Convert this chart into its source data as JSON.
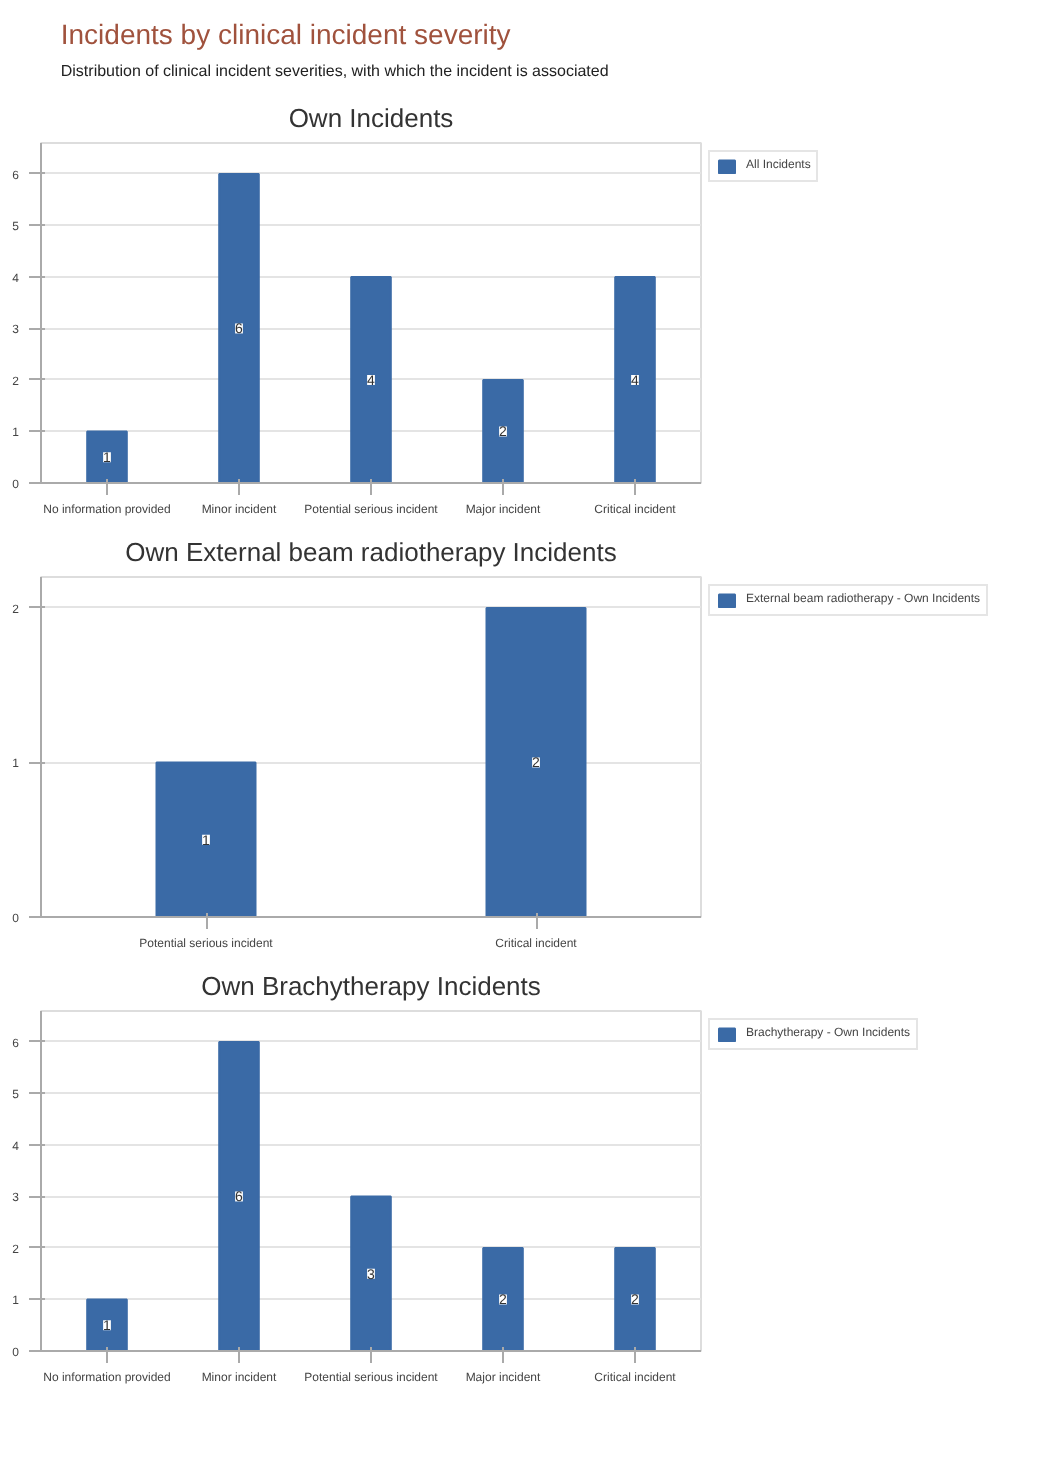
{
  "chart_data": [
    {
      "type": "bar",
      "title": "Own Incidents",
      "annotations": [
        "Incidents by clinical incident severity",
        "Distribution of clinical incident severities, with which the incident is associated"
      ],
      "categories": [
        "No information provided",
        "Minor incident",
        "Potential serious incident",
        "Major incident",
        "Critical incident"
      ],
      "series": [
        {
          "name": "All Incidents",
          "color": "#3a6aa6",
          "values": [
            1,
            6,
            4,
            2,
            4
          ]
        }
      ],
      "ylim": [
        0,
        6.6
      ],
      "yticks": [
        0,
        1,
        2,
        3,
        4,
        5,
        6
      ],
      "grid": "y",
      "legend": "right",
      "data_labels": true
    },
    {
      "type": "bar",
      "title": "Own External beam radiotherapy Incidents",
      "categories": [
        "Potential serious incident",
        "Critical incident"
      ],
      "series": [
        {
          "name": "External beam radiotherapy - Own Incidents",
          "color": "#3a6aa6",
          "values": [
            1,
            2
          ]
        }
      ],
      "ylim": [
        0,
        2.2
      ],
      "yticks": [
        0,
        1,
        2
      ],
      "grid": "y",
      "legend": "right",
      "data_labels": true
    },
    {
      "type": "bar",
      "title": "Own Brachytherapy Incidents",
      "categories": [
        "No information provided",
        "Minor incident",
        "Potential serious incident",
        "Major incident",
        "Critical incident"
      ],
      "series": [
        {
          "name": "Brachytherapy - Own Incidents",
          "color": "#3a6aa6",
          "values": [
            1,
            6,
            3,
            2,
            2
          ]
        }
      ],
      "ylim": [
        0,
        6.6
      ],
      "yticks": [
        0,
        1,
        2,
        3,
        4,
        5,
        6
      ],
      "grid": "y",
      "legend": "right",
      "data_labels": true
    }
  ]
}
